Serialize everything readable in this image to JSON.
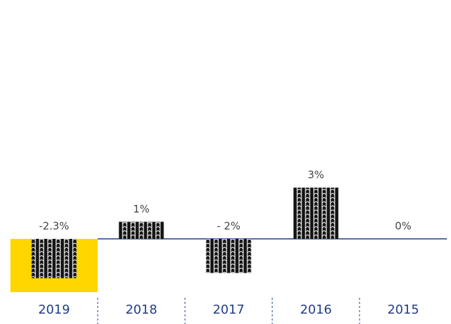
{
  "chart_data": {
    "type": "bar",
    "categories": [
      "2019",
      "2018",
      "2017",
      "2016",
      "2015"
    ],
    "values": [
      -2.3,
      1,
      -2,
      3,
      0
    ],
    "value_labels": [
      "-2.3%",
      "1%",
      "- 2%",
      "3%",
      "0%"
    ],
    "color": "#151515",
    "baseline_color": "#1f3c88",
    "category_color": "#1f3c88",
    "column_backgrounds": [
      "#ffd700",
      null,
      null,
      null,
      null
    ]
  }
}
